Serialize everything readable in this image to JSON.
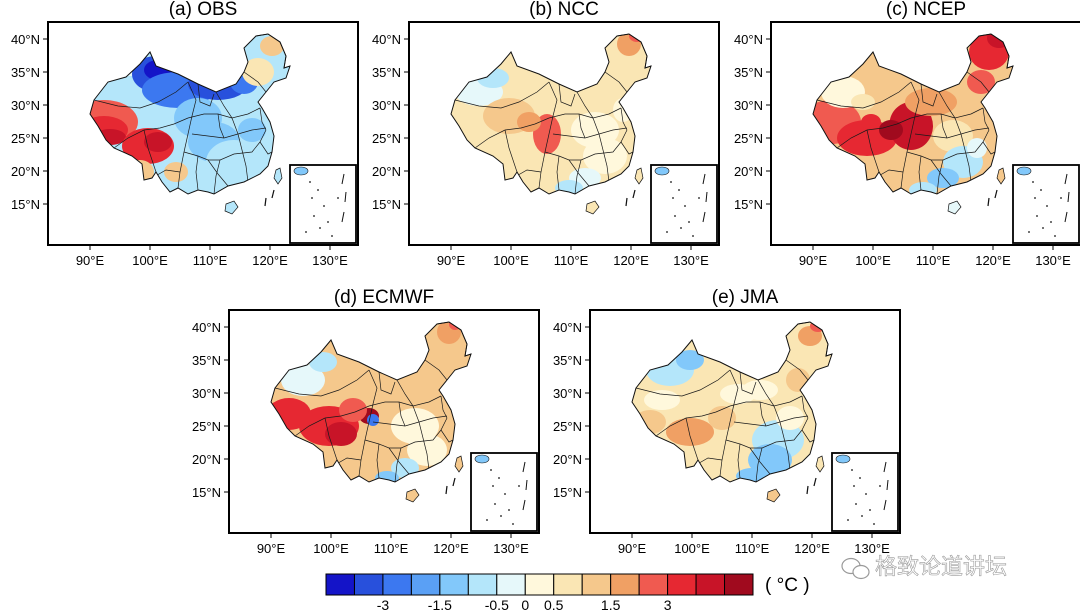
{
  "panels": [
    {
      "key": "obs",
      "title": "(a) OBS"
    },
    {
      "key": "ncc",
      "title": "(b) NCC"
    },
    {
      "key": "ncep",
      "title": "(c) NCEP"
    },
    {
      "key": "ecmwf",
      "title": "(d) ECMWF"
    },
    {
      "key": "jma",
      "title": "(e) JMA"
    }
  ],
  "lat_labels": [
    "40°N",
    "35°N",
    "30°N",
    "25°N",
    "20°N",
    "15°N"
  ],
  "lon_labels": [
    "90°E",
    "100°E",
    "110°E",
    "120°E",
    "130°E"
  ],
  "colorbar": {
    "colors": [
      "#1414c8",
      "#2850dc",
      "#3c78f0",
      "#5aa0f5",
      "#82c8fa",
      "#b4e6fa",
      "#e6f8fa",
      "#fff8dc",
      "#fae6b4",
      "#f5c88c",
      "#f0a064",
      "#f05a50",
      "#e62832",
      "#c81428",
      "#a00a1e"
    ],
    "labels": [
      "-3",
      "-1.5",
      "-0.5",
      "0",
      "0.5",
      "1.5",
      "3"
    ],
    "unit": "( °C )"
  },
  "watermark": "格致论道讲坛"
}
